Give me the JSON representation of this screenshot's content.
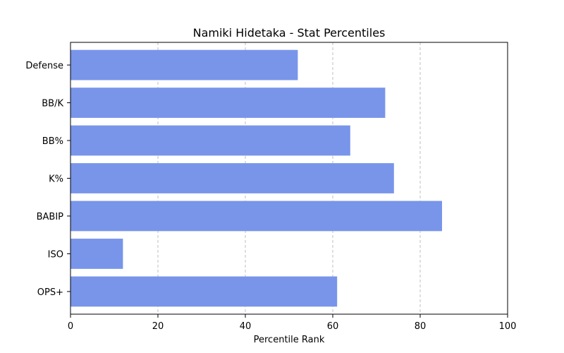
{
  "chart_data": {
    "type": "bar",
    "orientation": "horizontal",
    "title": "Namiki Hidetaka - Stat Percentiles",
    "xlabel": "Percentile Rank",
    "ylabel": "",
    "categories": [
      "Defense",
      "BB/K",
      "BB%",
      "K%",
      "BABIP",
      "ISO",
      "OPS+"
    ],
    "values": [
      52,
      72,
      64,
      74,
      85,
      12,
      61
    ],
    "xlim": [
      0,
      100
    ],
    "xticks": [
      0,
      20,
      40,
      60,
      80,
      100
    ],
    "xtick_labels": [
      "0",
      "20",
      "40",
      "60",
      "80",
      "100"
    ],
    "grid": "x-dashed",
    "bar_color": "#7895ea"
  }
}
